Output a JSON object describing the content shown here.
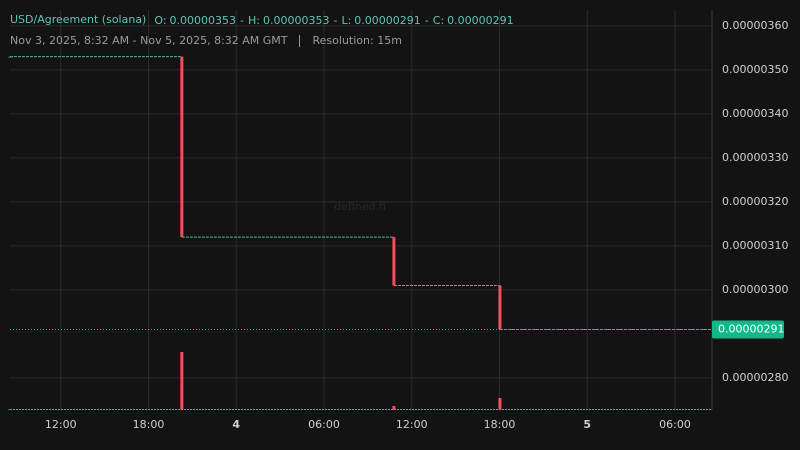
{
  "chart_data": {
    "type": "candlestick",
    "title": "USD/Agreement (solana)",
    "ohlc": [
      {
        "label": "O:",
        "value": "0.00000353"
      },
      {
        "label": "H:",
        "value": "0.00000353"
      },
      {
        "label": "L:",
        "value": "0.00000291"
      },
      {
        "label": "C:",
        "value": "0.00000291"
      }
    ],
    "ohlc_separator": "-",
    "subtitle": "Nov 3, 2025, 8:32 AM - Nov 5, 2025, 8:32 AM GMT",
    "resolution": "Resolution: 15m",
    "watermark": "defined.fi",
    "x": [
      0,
      11.75,
      26.25,
      33.5
    ],
    "open": [
      3.53e-06,
      3.53e-06,
      3.12e-06,
      3.01e-06
    ],
    "high": [
      3.53e-06,
      3.53e-06,
      3.12e-06,
      3.01e-06
    ],
    "low": [
      3.53e-06,
      3.12e-06,
      3.01e-06,
      2.91e-06
    ],
    "close": [
      3.53e-06,
      3.12e-06,
      3.01e-06,
      2.91e-06
    ],
    "volume": [
      1,
      58,
      4,
      12
    ],
    "up_color": "#26a69a",
    "down_color": "#f0505a",
    "line_color": "#4fb3a9",
    "xlim": [
      0,
      48
    ],
    "xticks": [
      {
        "value": 3.47,
        "label": "12:00"
      },
      {
        "value": 9.47,
        "label": "18:00"
      },
      {
        "value": 15.47,
        "label": "4"
      },
      {
        "value": 21.47,
        "label": "06:00"
      },
      {
        "value": 27.47,
        "label": "12:00"
      },
      {
        "value": 33.47,
        "label": "18:00"
      },
      {
        "value": 39.47,
        "label": "5"
      },
      {
        "value": 45.47,
        "label": "06:00"
      }
    ],
    "ylim": [
      2.727e-06,
      3.636e-06
    ],
    "yticks": [
      {
        "value": 2.8e-06,
        "label": "0.00000280"
      },
      {
        "value": 3e-06,
        "label": "0.00000300"
      },
      {
        "value": 3.1e-06,
        "label": "0.00000310"
      },
      {
        "value": 3.2e-06,
        "label": "0.00000320"
      },
      {
        "value": 3.3e-06,
        "label": "0.00000330"
      },
      {
        "value": 3.4e-06,
        "label": "0.00000340"
      },
      {
        "value": 3.5e-06,
        "label": "0.00000350"
      },
      {
        "value": 3.6e-06,
        "label": "0.00000360"
      }
    ],
    "last_price": {
      "value": 2.91e-06,
      "label": "0.00000291"
    },
    "last_price_color": "#0fb98a",
    "grid": true
  }
}
